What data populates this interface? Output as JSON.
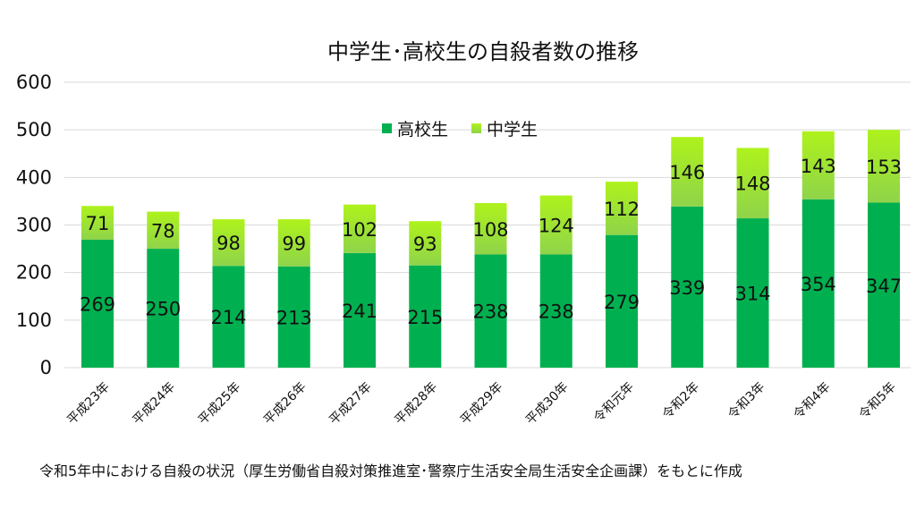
{
  "chart_data": {
    "type": "bar",
    "stacked": true,
    "title": "中学生･高校生の自殺者数の推移",
    "categories": [
      "平成23年",
      "平成24年",
      "平成25年",
      "平成26年",
      "平成27年",
      "平成28年",
      "平成29年",
      "平成30年",
      "令和元年",
      "令和2年",
      "令和3年",
      "令和4年",
      "令和5年"
    ],
    "series": [
      {
        "name": "高校生",
        "color": "#00b050",
        "values": [
          269,
          250,
          214,
          213,
          241,
          215,
          238,
          238,
          279,
          339,
          314,
          354,
          347
        ]
      },
      {
        "name": "中学生",
        "color": "#a6e22e",
        "values": [
          71,
          78,
          98,
          99,
          102,
          93,
          108,
          124,
          112,
          146,
          148,
          143,
          153
        ]
      }
    ],
    "ylim": [
      0,
      600
    ],
    "yticks": [
      0,
      100,
      200,
      300,
      400,
      500,
      600
    ],
    "legend": "top-center",
    "grid": true
  },
  "footnote": "令和5年中における自殺の状況（厚生労働省自殺対策推進室･警察庁生活安全局生活安全企画課）をもとに作成"
}
